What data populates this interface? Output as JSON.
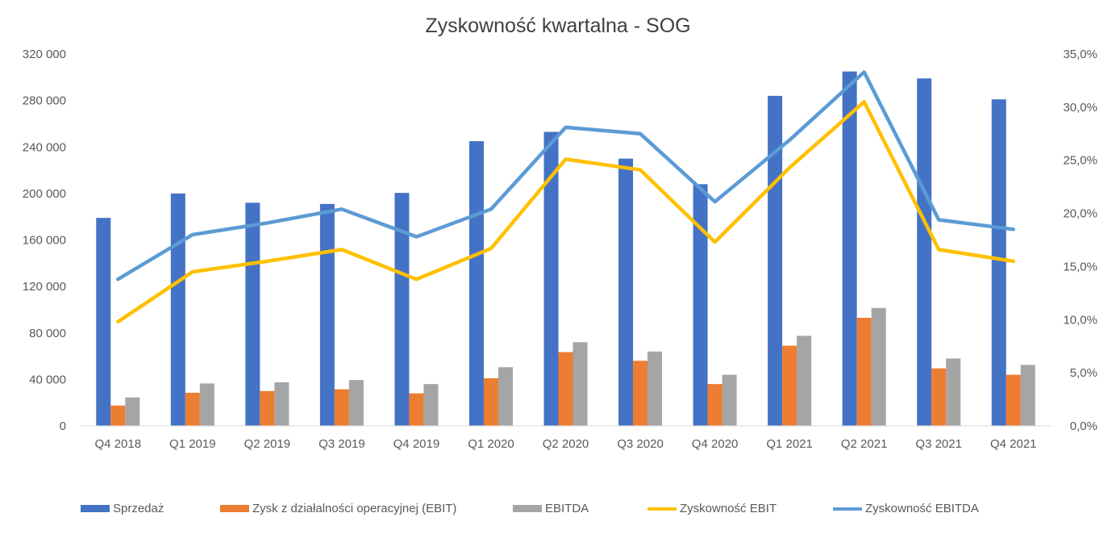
{
  "chart_data": {
    "type": "bar",
    "title": "Zyskowność kwartalna - SOG",
    "categories": [
      "Q4 2018",
      "Q1 2019",
      "Q2 2019",
      "Q3 2019",
      "Q4 2019",
      "Q1 2020",
      "Q2 2020",
      "Q3 2020",
      "Q4 2020",
      "Q1 2021",
      "Q2 2021",
      "Q3 2021",
      "Q4 2021"
    ],
    "series": [
      {
        "name": "Sprzedaż",
        "kind": "bar",
        "axis": "left",
        "color": "#4472C4",
        "values": [
          179000,
          200000,
          192000,
          191000,
          200500,
          245000,
          253000,
          230000,
          208000,
          284000,
          305000,
          299000,
          281000
        ]
      },
      {
        "name": "Zysk z działalności operacyjnej (EBIT)",
        "kind": "bar",
        "axis": "left",
        "color": "#ED7D31",
        "values": [
          17500,
          28500,
          30000,
          31500,
          28000,
          41000,
          63500,
          56000,
          36000,
          69000,
          93000,
          49500,
          44000
        ]
      },
      {
        "name": "EBITDA",
        "kind": "bar",
        "axis": "left",
        "color": "#A5A5A5",
        "values": [
          24500,
          36500,
          37500,
          39500,
          36000,
          50500,
          72000,
          64000,
          44000,
          77500,
          101500,
          58000,
          52500
        ]
      },
      {
        "name": "Zyskowność EBIT",
        "kind": "line",
        "axis": "right",
        "color": "#FFC000",
        "values": [
          9.8,
          14.5,
          15.5,
          16.6,
          13.8,
          16.7,
          25.1,
          24.1,
          17.3,
          24.3,
          30.5,
          16.6,
          15.5
        ]
      },
      {
        "name": "Zyskowność EBITDA",
        "kind": "line",
        "axis": "right",
        "color": "#5B9BD5",
        "values": [
          13.8,
          18.0,
          19.1,
          20.4,
          17.8,
          20.4,
          28.1,
          27.5,
          21.1,
          26.9,
          33.3,
          19.4,
          18.5
        ]
      }
    ],
    "y_left": {
      "min": 0,
      "max": 320000,
      "step": 40000,
      "tick_labels": [
        "0",
        "40 000",
        "80 000",
        "120 000",
        "160 000",
        "200 000",
        "240 000",
        "280 000",
        "320 000"
      ]
    },
    "y_right": {
      "min": 0,
      "max": 35,
      "step": 5,
      "tick_labels": [
        "0,0%",
        "5,0%",
        "10,0%",
        "15,0%",
        "20,0%",
        "25,0%",
        "30,0%",
        "35,0%"
      ]
    },
    "grid": false,
    "legend_position": "bottom"
  }
}
